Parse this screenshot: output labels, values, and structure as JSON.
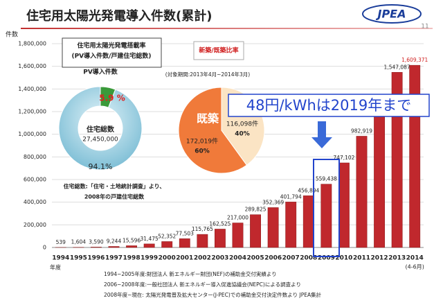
{
  "header": {
    "title": "住宅用太陽光発電導入件数(累計)",
    "logo": "JPEA",
    "page": "11"
  },
  "chart_data": [
    {
      "type": "bar",
      "y_label": "件数",
      "x_label": "年度",
      "categories": [
        "1994",
        "1995",
        "1996",
        "1997",
        "1998",
        "1999",
        "2000",
        "2001",
        "2002",
        "2003",
        "2004",
        "2005",
        "2006",
        "2007",
        "2008",
        "2009",
        "2010",
        "2011",
        "2012",
        "2013",
        "2014"
      ],
      "category_note": "(4-6月)",
      "values": [
        539,
        1604,
        3590,
        9244,
        15596,
        31475,
        52352,
        77503,
        115765,
        162525,
        217000,
        289825,
        352369,
        401794,
        456894,
        559438,
        747102,
        982919,
        1300000,
        1547087,
        1609371
      ],
      "value_labels": [
        "539",
        "1,604",
        "3,590",
        "9,244",
        "15,596",
        "31,475",
        "52,352",
        "77,503",
        "115,765",
        "162,525",
        "217,000",
        "289,825",
        "352,369",
        "401,794",
        "456,894",
        "559,438",
        "747,102",
        "982,919",
        null,
        "1,547,087",
        "1,609,371"
      ],
      "color": "#c0282d",
      "last_label_color": "#d02020",
      "ylim": [
        0,
        1800000
      ],
      "yticks": [
        {
          "value": 0,
          "label": "0"
        },
        {
          "value": 200000,
          "label": "200,000"
        },
        {
          "value": 400000,
          "label": "400,000"
        },
        {
          "value": 600000,
          "label": "600,000"
        },
        {
          "value": 800000,
          "label": "800,000"
        },
        {
          "value": 1000000,
          "label": "1,000,000"
        },
        {
          "value": 1200000,
          "label": "1,200,000"
        },
        {
          "value": 1400000,
          "label": "1,400,000"
        },
        {
          "value": 1600000,
          "label": "1,600,000"
        },
        {
          "value": 1800000,
          "label": "1,800,000"
        }
      ],
      "grid": true,
      "annotation": "48円/kWhは2019年まで"
    },
    {
      "type": "donut",
      "title": [
        "住宅用太陽光発電搭載率",
        "(PV導入件数/戸建住宅総数)"
      ],
      "subtitle": "PV導入件数",
      "center_label": "住宅総数",
      "center_value": "27,450,000",
      "values": [
        5.9,
        94.1
      ],
      "value_labels": [
        "5.9 %",
        "94.1%"
      ],
      "colors": [
        "#3a9a3a",
        "#9fd0e2"
      ],
      "note": [
        "住宅総数:「住宅・土地統計調査」より、",
        "2008年の戸建住宅総数"
      ]
    },
    {
      "type": "pie",
      "title": "新築/既築比率",
      "subtitle": "(対象期間:2013年4月~2014年3月)",
      "names": [
        "既築",
        null
      ],
      "values": [
        60,
        40
      ],
      "value_labels": [
        "60%",
        "40%"
      ],
      "counts": [
        172019,
        116098
      ],
      "count_labels": [
        "172,019件",
        "116,098件"
      ],
      "colors": [
        "#f07a3a",
        "#fbe4c4"
      ]
    }
  ],
  "footnotes": [
    "1994~2005年度:財団法人 新エネルギー財団(NEF)の補助金交付実績より",
    "2006~2008年度:一般社団法人 新エネルギー導入促進協議会(NEPC)による調査より",
    "2008年度~現在: 太陽光発電普及拡大センター(J-PEC)での補助金交付決定件数より JPEA集計"
  ]
}
